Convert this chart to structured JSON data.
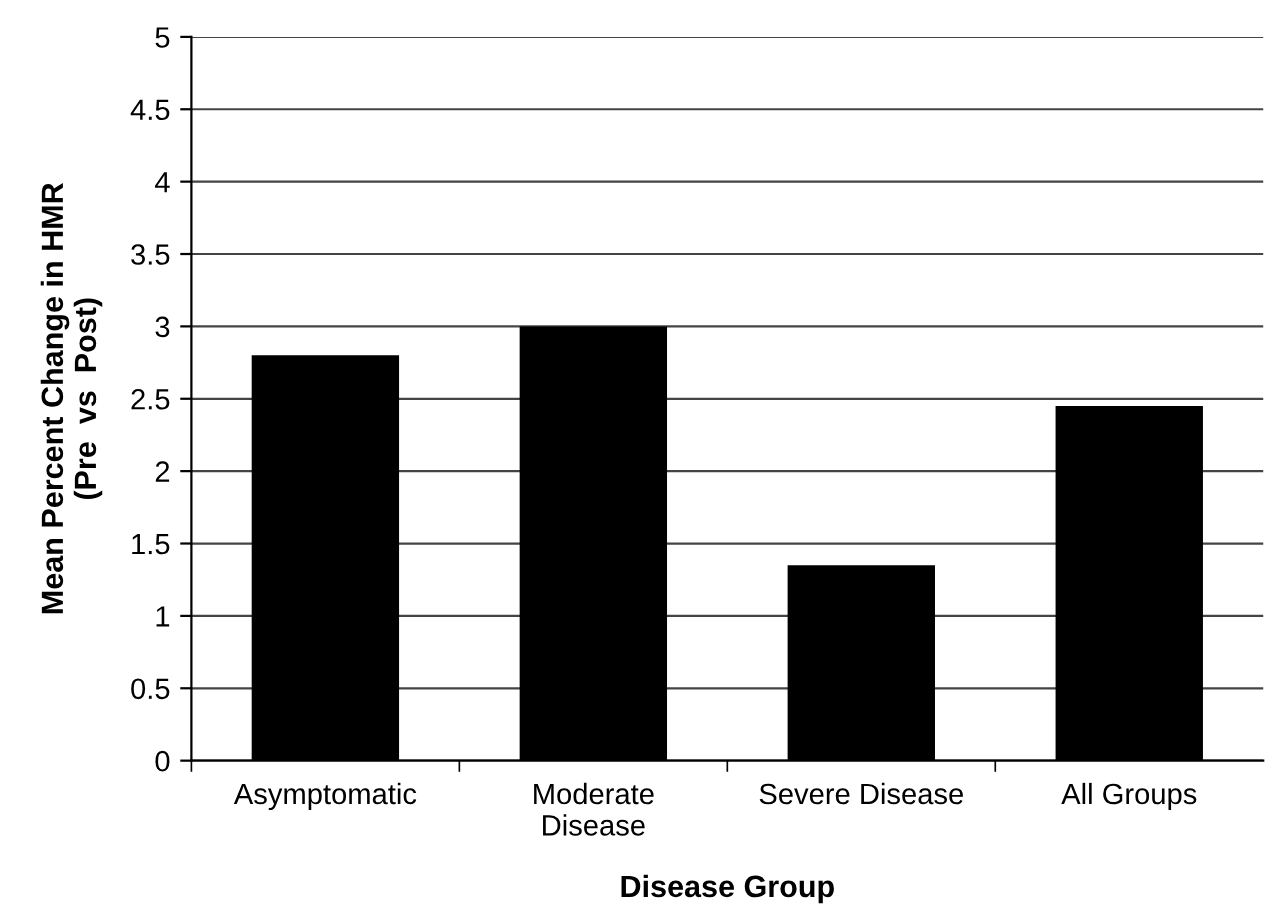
{
  "chart_data": {
    "type": "bar",
    "xlabel": "Disease Group",
    "ylabel": "Mean Percent Change in HMR\n(Pre  vs  Post)",
    "categories": [
      "Asymptomatic",
      "Moderate\nDisease",
      "Severe Disease",
      "All Groups"
    ],
    "values": [
      2.8,
      3.0,
      1.35,
      2.45
    ],
    "color": "#000000",
    "ylim": [
      0,
      5
    ],
    "yticks": [
      0,
      0.5,
      1,
      1.5,
      2,
      2.5,
      3,
      3.5,
      4,
      4.5,
      5
    ],
    "grid": "y",
    "legend": false
  }
}
